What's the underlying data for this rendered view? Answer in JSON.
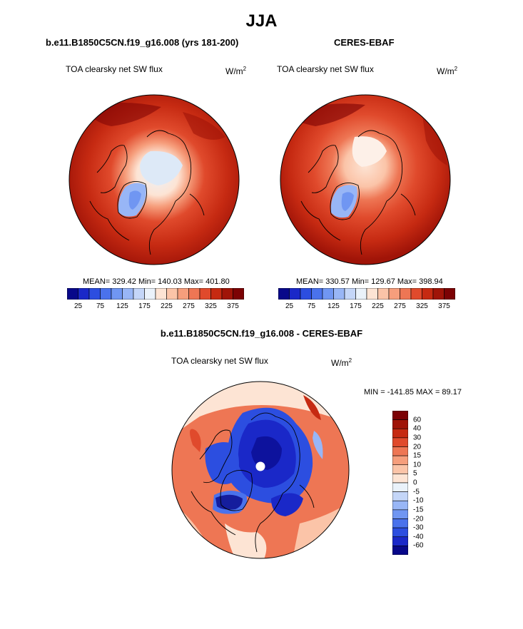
{
  "title": "JJA",
  "panels": [
    {
      "title": "b.e11.B1850C5CN.f19_g16.008 (yrs 181-200)",
      "variable": "TOA clearsky net SW flux",
      "units_base": "W/m",
      "units_exp": "2",
      "stats": "MEAN= 329.42  Min= 140.03  Max= 401.80"
    },
    {
      "title": "CERES-EBAF",
      "variable": "TOA clearsky net SW flux",
      "units_base": "W/m",
      "units_exp": "2",
      "stats": "MEAN= 330.57  Min= 129.67  Max= 398.94"
    },
    {
      "title": "b.e11.B1850C5CN.f19_g16.008 - CERES-EBAF",
      "variable": "TOA clearsky net SW flux",
      "units_base": "W/m",
      "units_exp": "2",
      "stats": "MIN = -141.85 MAX =  89.17"
    }
  ],
  "colorbar_abs": {
    "colors": [
      "#08088a",
      "#1a28c8",
      "#2c4ee0",
      "#4a72ec",
      "#7096f2",
      "#98b6f6",
      "#c4d6f8",
      "#eaf2fa",
      "#fde4d4",
      "#fbc4a8",
      "#f69e7c",
      "#ee7654",
      "#e04a2c",
      "#c62a12",
      "#a01408",
      "#7c0204"
    ],
    "tick_labels": [
      "25",
      "75",
      "125",
      "175",
      "225",
      "275",
      "325",
      "375"
    ]
  },
  "colorbar_diff": {
    "colors": [
      "#7c0204",
      "#a01408",
      "#c62a12",
      "#e04a2c",
      "#ee7654",
      "#f69e7c",
      "#fbc4a8",
      "#fde4d4",
      "#eaf2fa",
      "#c4d6f8",
      "#98b6f6",
      "#7096f2",
      "#4a72ec",
      "#2c4ee0",
      "#1a28c8",
      "#08088a"
    ],
    "tick_labels": [
      "60",
      "40",
      "30",
      "20",
      "15",
      "10",
      "5",
      "0",
      "-5",
      "-10",
      "-15",
      "-20",
      "-30",
      "-40",
      "-60"
    ]
  }
}
